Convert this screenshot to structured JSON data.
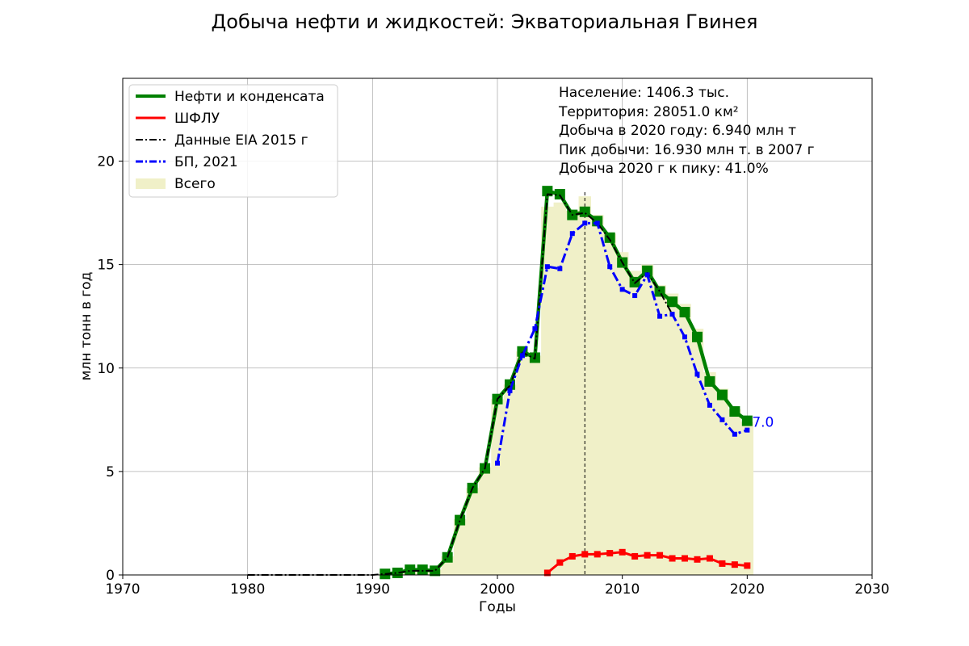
{
  "chart_data": {
    "type": "line",
    "title": "Добыча нефти и жидкостей: Экваториальная Гвинея",
    "xlabel": "Годы",
    "ylabel": "млн тонн в год",
    "xlim": [
      1970,
      2030
    ],
    "ylim": [
      0,
      24
    ],
    "x_ticks": [
      1970,
      1980,
      1990,
      2000,
      2010,
      2020,
      2030
    ],
    "y_ticks": [
      0,
      5,
      10,
      15,
      20
    ],
    "grid": true,
    "legend_position": "top-left",
    "peak_year": 2007,
    "end_label": "7.0",
    "info": {
      "population": "Население: 1406.3 тыс.",
      "territory": "Территория: 28051.0 км²",
      "production_2020": "Добыча в 2020 году: 6.940 млн т",
      "peak": "Пик добычи: 16.930 млн т. в 2007 г",
      "ratio": "Добыча 2020 г к пику: 41.0%"
    },
    "total": {
      "name": "Всего",
      "color": "#f0f0c8",
      "x": [
        1991,
        1992,
        1993,
        1994,
        1995,
        1996,
        1997,
        1998,
        1999,
        2000,
        2001,
        2002,
        2003,
        2004,
        2005,
        2006,
        2007,
        2008,
        2009,
        2010,
        2011,
        2012,
        2013,
        2014,
        2015,
        2016,
        2017,
        2018,
        2019,
        2020
      ],
      "values": [
        0.05,
        0.1,
        0.2,
        0.2,
        0.25,
        0.9,
        2.7,
        4.2,
        5.2,
        8.5,
        9.2,
        10.8,
        10.6,
        17.8,
        18.0,
        17.6,
        18.3,
        17.4,
        16.5,
        15.6,
        14.7,
        15.0,
        14.0,
        13.6,
        13.1,
        11.9,
        9.8,
        9.0,
        8.0,
        7.4
      ]
    },
    "series": [
      {
        "name": "Нефти и конденсата",
        "color": "#008000",
        "x": [
          1991,
          1992,
          1993,
          1994,
          1995,
          1996,
          1997,
          1998,
          1999,
          2000,
          2001,
          2002,
          2003,
          2004,
          2005,
          2006,
          2007,
          2008,
          2009,
          2010,
          2011,
          2012,
          2013,
          2014,
          2015,
          2016,
          2017,
          2018,
          2019,
          2020
        ],
        "values": [
          0.05,
          0.1,
          0.25,
          0.25,
          0.2,
          0.85,
          2.65,
          4.2,
          5.15,
          8.5,
          9.2,
          10.8,
          10.5,
          18.55,
          18.4,
          17.4,
          17.55,
          17.1,
          16.3,
          15.1,
          14.15,
          14.7,
          13.7,
          13.2,
          12.7,
          11.5,
          9.35,
          8.7,
          7.9,
          7.45
        ]
      },
      {
        "name": "ШФЛУ",
        "color": "#ff0000",
        "x": [
          2004,
          2005,
          2006,
          2007,
          2008,
          2009,
          2010,
          2011,
          2012,
          2013,
          2014,
          2015,
          2016,
          2017,
          2018,
          2019,
          2020
        ],
        "values": [
          0.1,
          0.6,
          0.9,
          1.0,
          1.0,
          1.05,
          1.1,
          0.9,
          0.95,
          0.95,
          0.8,
          0.8,
          0.75,
          0.8,
          0.55,
          0.5,
          0.45
        ]
      },
      {
        "name": "Данные EIA 2015 г",
        "color": "#000000",
        "x": [
          1980,
          1981,
          1982,
          1983,
          1984,
          1985,
          1986,
          1987,
          1988,
          1989,
          1990,
          1991,
          1992,
          1993,
          1994,
          1995,
          1996,
          1997,
          1998,
          1999,
          2000,
          2001,
          2002,
          2003,
          2004,
          2005,
          2006,
          2007,
          2008,
          2009,
          2010,
          2011,
          2012,
          2013,
          2014
        ],
        "values": [
          0,
          0,
          0,
          0,
          0,
          0,
          0,
          0,
          0,
          0,
          0,
          0.05,
          0.1,
          0.2,
          0.2,
          0.2,
          0.85,
          2.65,
          4.2,
          5.15,
          8.5,
          9.15,
          10.75,
          10.45,
          18.4,
          18.35,
          17.4,
          17.5,
          17.0,
          16.2,
          15.1,
          14.1,
          14.6,
          13.7,
          12.6
        ]
      },
      {
        "name": "БП, 2021",
        "color": "#0000ff",
        "x": [
          2000,
          2001,
          2002,
          2003,
          2004,
          2005,
          2006,
          2007,
          2008,
          2009,
          2010,
          2011,
          2012,
          2013,
          2014,
          2015,
          2016,
          2017,
          2018,
          2019,
          2020
        ],
        "values": [
          5.4,
          8.9,
          10.6,
          11.9,
          14.9,
          14.8,
          16.5,
          17.0,
          17.0,
          14.9,
          13.8,
          13.5,
          14.5,
          12.5,
          12.6,
          11.5,
          9.7,
          8.2,
          7.5,
          6.8,
          7.0
        ]
      }
    ]
  }
}
